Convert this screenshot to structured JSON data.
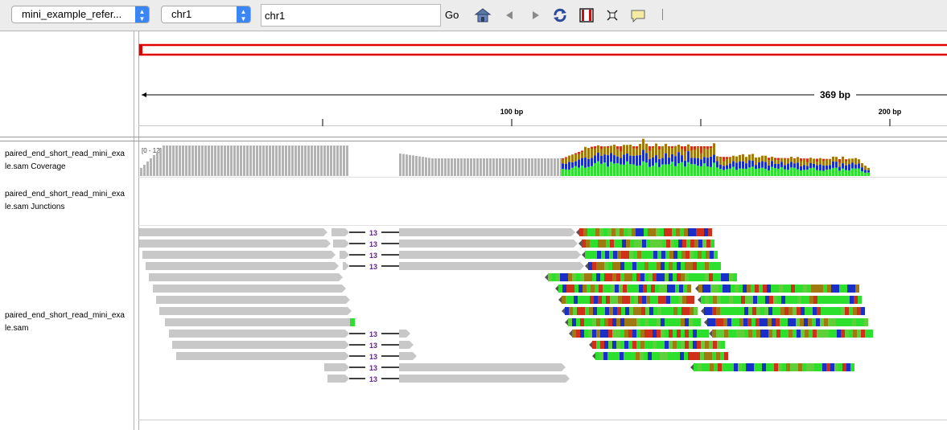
{
  "toolbar": {
    "genome_select": "mini_example_refer...",
    "chromosome_select": "chr1",
    "locus_value": "chr1",
    "go_label": "Go",
    "icons": [
      "home-icon",
      "back-icon",
      "forward-icon",
      "refresh-icon",
      "region-of-interest-icon",
      "resize-to-window-icon",
      "popup-info-icon"
    ]
  },
  "ruler": {
    "span_label": "369 bp",
    "ticks": [
      "100 bp",
      "200 bp"
    ]
  },
  "coverage": {
    "range_label": "[0 - 12]"
  },
  "tracks": {
    "coverage_label": "paired_end_short_read_mini_exa\nle.sam Coverage",
    "junctions_label": "paired_end_short_read_mini_exa\nle.sam Junctions",
    "alignment_label": "paired_end_short_read_mini_exa\nle.sam"
  },
  "alignments": {
    "insert_label": "13"
  },
  "colors": {
    "grey_read": "#c8c8c8",
    "base_A": "#2ee02e",
    "base_C": "#1a2fc8",
    "base_G": "#a07a10",
    "base_T": "#d0301a",
    "insertion": "#6a1fa0",
    "roi": "#e00000"
  }
}
